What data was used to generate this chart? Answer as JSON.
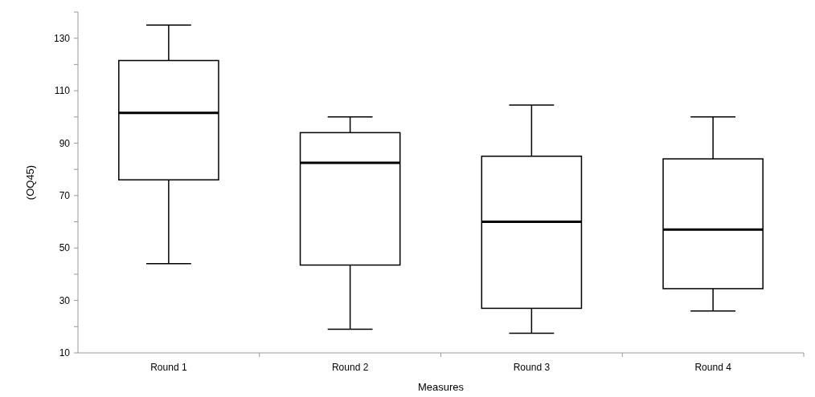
{
  "chart_data": {
    "type": "box",
    "xlabel": "Measures",
    "ylabel": "(OQ45)",
    "categories": [
      "Round 1",
      "Round 2",
      "Round 3",
      "Round 4"
    ],
    "boxes": [
      {
        "low": 44,
        "q1": 76,
        "median": 101.5,
        "q3": 121.5,
        "high": 135
      },
      {
        "low": 19,
        "q1": 43.5,
        "median": 82.5,
        "q3": 94,
        "high": 100
      },
      {
        "low": 17.5,
        "q1": 27,
        "median": 60,
        "q3": 85,
        "high": 104.5
      },
      {
        "low": 26,
        "q1": 34.5,
        "median": 57,
        "q3": 84,
        "high": 100
      }
    ],
    "color": "#000000",
    "ylim": [
      10,
      140
    ],
    "yticks": [
      10,
      {
        "value": 20,
        "label": null
      },
      30,
      {
        "value": 40,
        "label": null
      },
      50,
      {
        "value": 60,
        "label": null
      },
      70,
      {
        "value": 80,
        "label": null
      },
      90,
      {
        "value": 100,
        "label": null
      },
      110,
      {
        "value": 120,
        "label": null
      },
      130,
      {
        "value": 140,
        "label": null
      }
    ],
    "grid": false
  }
}
